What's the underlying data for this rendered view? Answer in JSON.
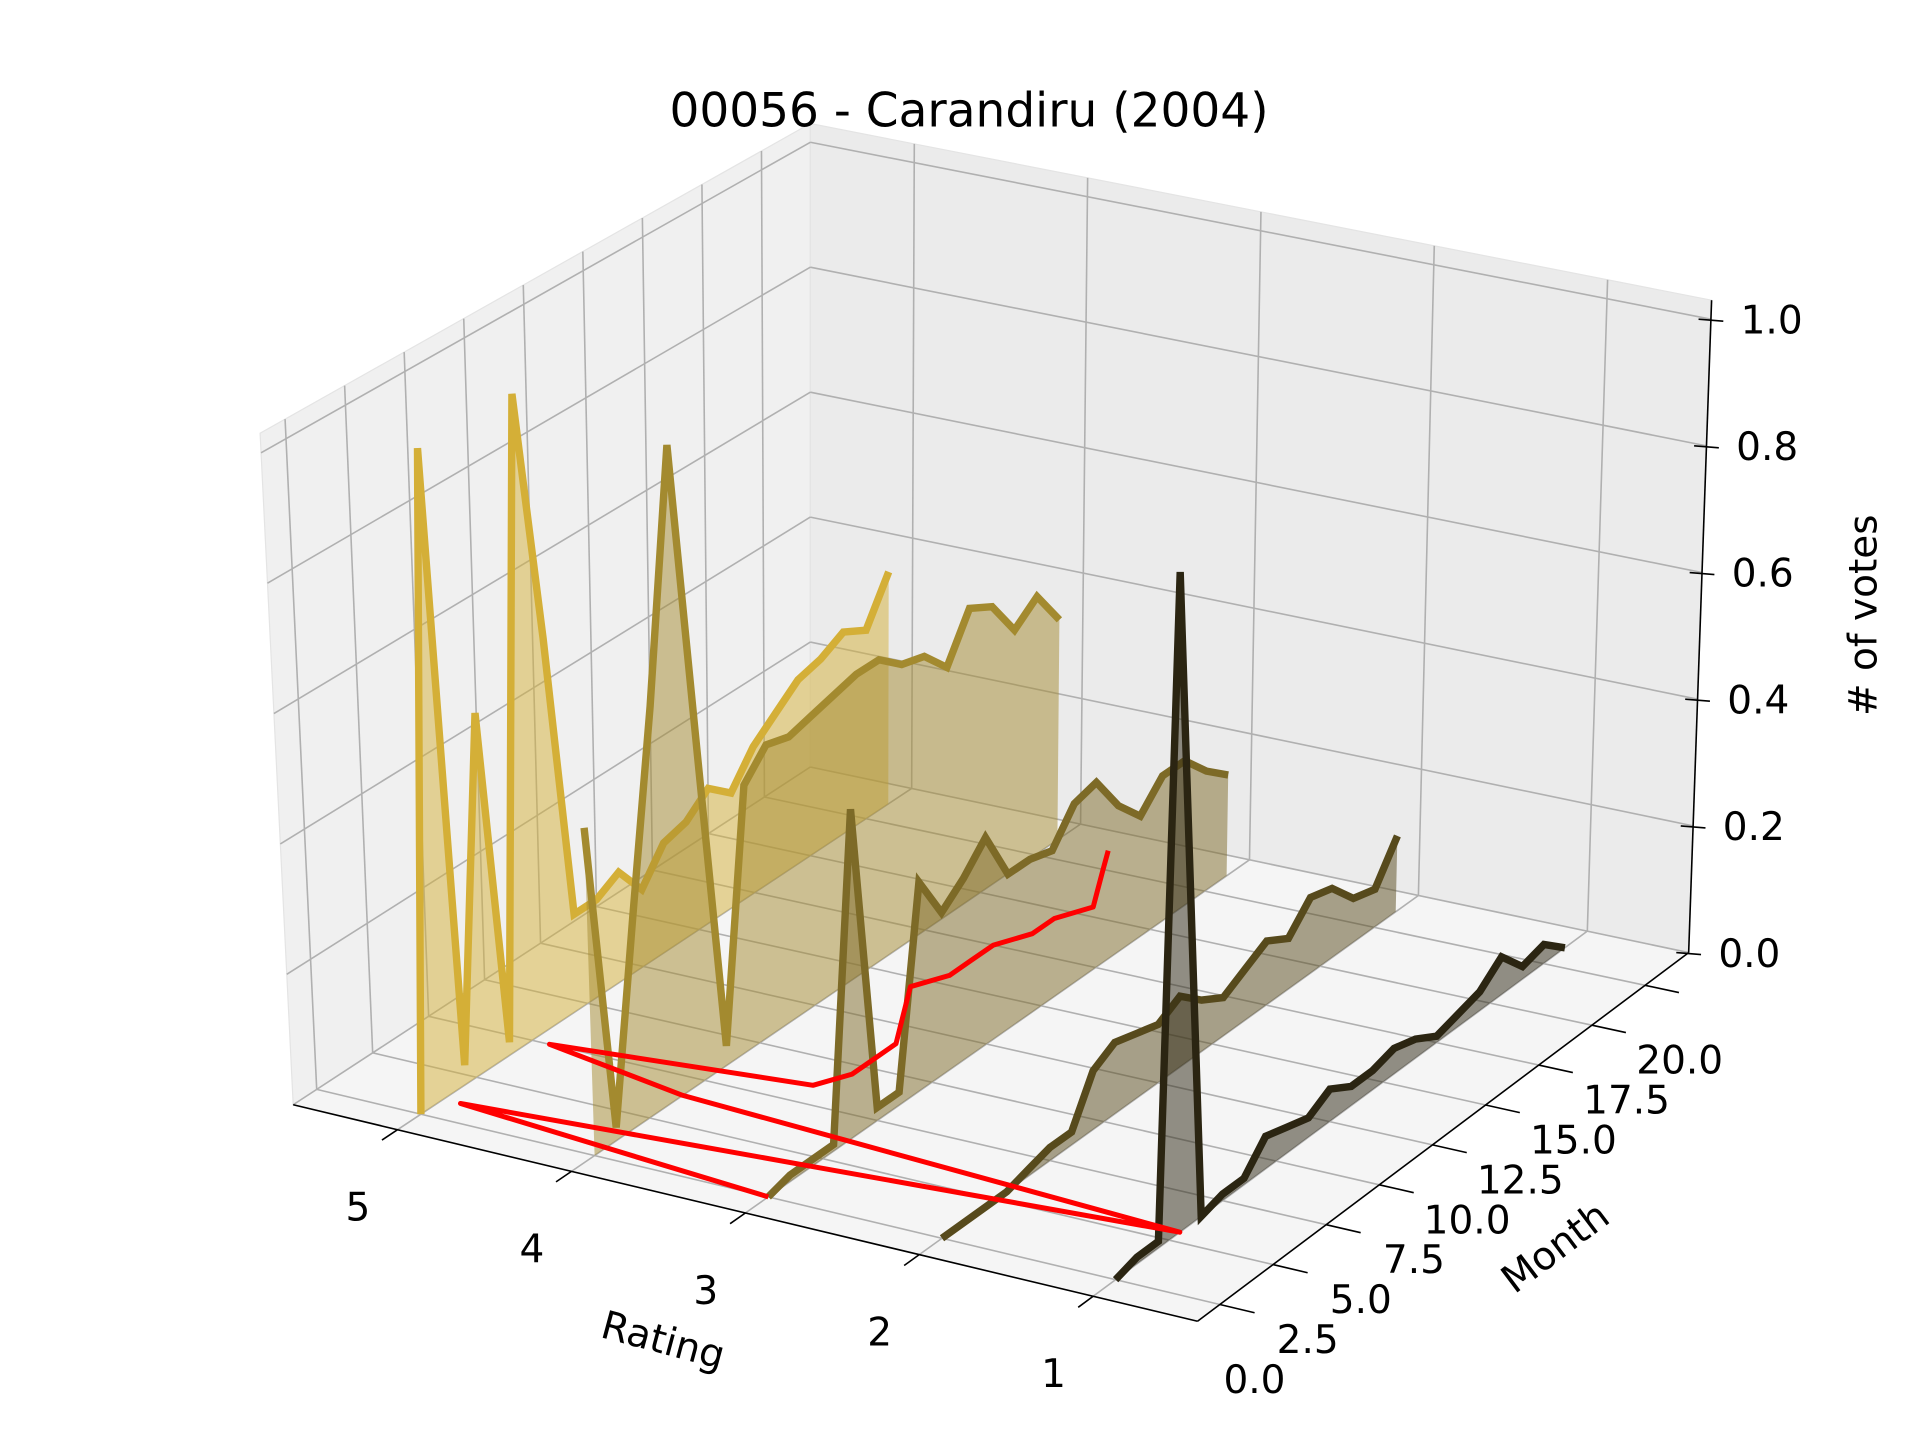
{
  "chart_data": {
    "type": "line3d",
    "title": "00056 - Carandiru (2004)",
    "xlabel": "Rating",
    "ylabel": "Month",
    "zlabel": "# of votes",
    "xlim": [
      0.4,
      5.6
    ],
    "ylim": [
      -1.05,
      22.05
    ],
    "zlim": [
      0,
      1.03
    ],
    "xticks": [
      1,
      2,
      3,
      4,
      5
    ],
    "yticks": [
      {
        "value": 0,
        "label": "0.0"
      },
      2.5,
      {
        "value": 5,
        "label": "5.0"
      },
      7.5,
      {
        "value": 10,
        "label": "10.0"
      },
      12.5,
      {
        "value": 15,
        "label": "15.0"
      },
      17.5,
      {
        "value": 20,
        "label": "20.0"
      }
    ],
    "zticks": [
      {
        "value": 0,
        "label": "0.0"
      },
      0.2,
      0.4,
      0.6,
      0.8,
      {
        "value": 1,
        "label": "1.0"
      }
    ],
    "grid": true,
    "y": [
      0,
      1,
      2,
      3,
      4,
      5,
      6,
      7,
      8,
      9,
      10,
      11,
      12,
      13,
      14,
      15,
      16,
      17,
      18,
      19,
      20,
      21
    ],
    "series": [
      {
        "x": 5,
        "color": "#d4af37",
        "values": [
          0,
          1.0,
          0.03,
          0.55,
          0.02,
          1.0,
          0.6,
          0.15,
          0.15,
          0.17,
          0.12,
          0.17,
          0.18,
          0.21,
          0.18,
          0.23,
          0.26,
          0.29,
          0.3,
          0.32,
          0.3,
          0.37
        ]
      },
      {
        "x": 4,
        "color": "#a38a2f",
        "values": [
          0.5,
          0.02,
          0.32,
          0.62,
          1.0,
          0.5,
          0.03,
          0.41,
          0.45,
          0.44,
          0.45,
          0.46,
          0.47,
          0.47,
          0.44,
          0.43,
          0.39,
          0.46,
          0.44,
          0.38,
          0.41,
          0.35
        ]
      },
      {
        "x": 3,
        "color": "#7d6a27",
        "values": [
          0,
          0.01,
          0.01,
          0.01,
          0.5,
          0.02,
          0.02,
          0.32,
          0.25,
          0.28,
          0.32,
          0.24,
          0.24,
          0.23,
          0.28,
          0.29,
          0.23,
          0.19,
          0.23,
          0.23,
          0.19,
          0.16
        ]
      },
      {
        "x": 2,
        "color": "#574a1c",
        "values": [
          0,
          0,
          0,
          0,
          0.01,
          0.02,
          0.02,
          0.09,
          0.11,
          0.1,
          0.09,
          0.11,
          0.08,
          0.06,
          0.08,
          0.1,
          0.08,
          0.12,
          0.11,
          0.07,
          0.06,
          0.12
        ]
      },
      {
        "x": 1,
        "color": "#2b2512",
        "values": [
          0,
          0.01,
          0.01,
          1.0,
          0,
          0.01,
          0.01,
          0.05,
          0.04,
          0.03,
          0.05,
          0.03,
          0.03,
          0.04,
          0.03,
          0.01,
          0.02,
          0.03,
          0.06,
          0.02,
          0.03,
          0
        ]
      }
    ],
    "mean_line": {
      "color": "#ff0000",
      "values": [
        3.0,
        4.9,
        3.0,
        1.0,
        4.0,
        4.9,
        3.5,
        3.4,
        3.4,
        3.4,
        3.5,
        3.6,
        3.7,
        3.6,
        3.6,
        3.6,
        3.5,
        3.5,
        3.4,
        3.5,
        3.6,
        3.7
      ]
    }
  }
}
